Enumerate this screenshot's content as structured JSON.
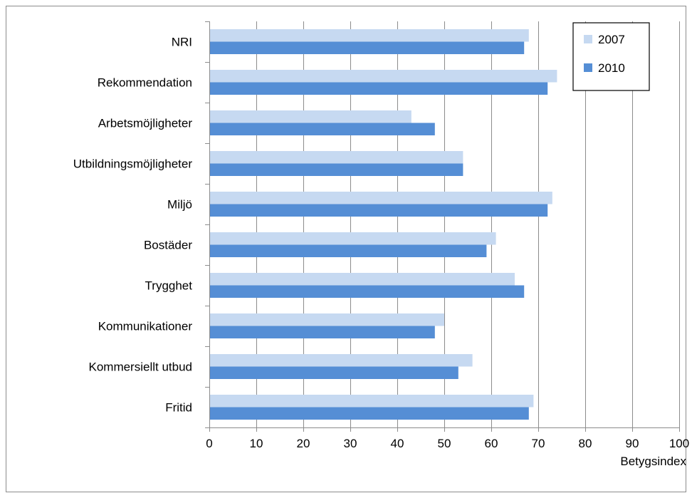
{
  "chart_data": {
    "type": "bar",
    "orientation": "horizontal",
    "categories": [
      "NRI",
      "Rekommendation",
      "Arbetsmöjligheter",
      "Utbildningsmöjligheter",
      "Miljö",
      "Bostäder",
      "Trygghet",
      "Kommunikationer",
      "Kommersiellt utbud",
      "Fritid"
    ],
    "series": [
      {
        "name": "2007",
        "color": "#c6d9f1",
        "values": [
          68,
          74,
          43,
          54,
          73,
          61,
          65,
          50,
          56,
          69
        ]
      },
      {
        "name": "2010",
        "color": "#558ed5",
        "values": [
          67,
          72,
          48,
          54,
          72,
          59,
          67,
          48,
          53,
          68
        ]
      }
    ],
    "xlim": [
      0,
      100
    ],
    "xticks": [
      0,
      10,
      20,
      30,
      40,
      50,
      60,
      70,
      80,
      90,
      100
    ],
    "xlabel": "Betygsindex",
    "ylabel": "",
    "title": "",
    "grid": "vertical",
    "legend_position": "top-right"
  }
}
